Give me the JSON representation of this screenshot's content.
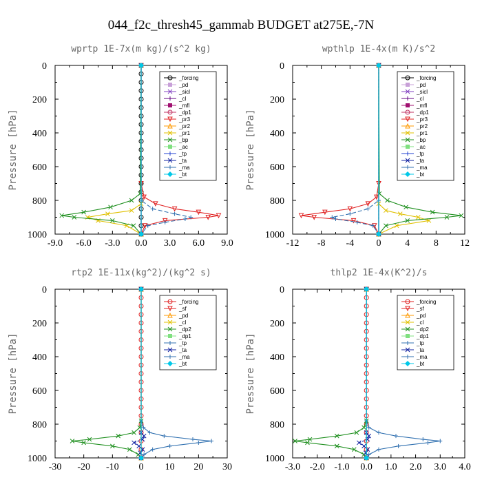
{
  "figure_title": "044_f2c_thresh45_gammab  BUDGET at275E,-7N",
  "chart_data": [
    {
      "type": "line",
      "title": "wprtp  1E-7x(m kg)/(s^2 kg)",
      "ylabel": "Pressure [hPa]",
      "xlim": [
        -9.0,
        9.0
      ],
      "ylim": [
        1000,
        0
      ],
      "xticks": [
        "-9.0",
        "-6.0",
        "-3.0",
        "0.0",
        "3.0",
        "6.0",
        "9.0"
      ],
      "yticks": [
        "0",
        "200",
        "400",
        "600",
        "800",
        "1000"
      ],
      "legend_position": "top-right",
      "series": [
        {
          "name": "_forcing",
          "color": "#000000",
          "marker": "o",
          "pressure": [
            0,
            50,
            100,
            150,
            200,
            250,
            300,
            350,
            400,
            450,
            500,
            550,
            600,
            650,
            700,
            750,
            800,
            850,
            900,
            950,
            1000
          ],
          "values": [
            0,
            0,
            0,
            0,
            0,
            0,
            0,
            0,
            0,
            0,
            0,
            0,
            0,
            0,
            0,
            0,
            0,
            0,
            0,
            0,
            0
          ]
        },
        {
          "name": "_pd",
          "color": "#c8a0d8",
          "marker": "s",
          "pressure": [
            0,
            1000
          ],
          "values": [
            0,
            0
          ]
        },
        {
          "name": "_sicl",
          "color": "#8040c0",
          "marker": "x",
          "pressure": [
            0,
            1000
          ],
          "values": [
            0,
            0
          ]
        },
        {
          "name": "_cl",
          "color": "#600080",
          "marker": "+",
          "pressure": [
            0,
            1000
          ],
          "values": [
            0,
            0
          ]
        },
        {
          "name": "_mfl",
          "color": "#a01070",
          "marker": "s",
          "pressure": [
            0,
            1000
          ],
          "values": [
            0,
            0
          ]
        },
        {
          "name": "_dp1",
          "color": "#c03060",
          "marker": "o",
          "pressure": [
            0,
            1000
          ],
          "values": [
            0,
            0
          ]
        },
        {
          "name": "_pr3",
          "color": "#e02020",
          "marker": "v",
          "pressure": [
            0,
            700,
            780,
            820,
            850,
            870,
            890,
            900,
            920,
            950,
            1000
          ],
          "values": [
            0,
            0,
            0.3,
            1.5,
            3.5,
            6.0,
            8.1,
            7.0,
            2.5,
            0.4,
            0
          ]
        },
        {
          "name": "_pr2",
          "color": "#ff9900",
          "marker": "^",
          "pressure": [
            0,
            1000
          ],
          "values": [
            0,
            0
          ]
        },
        {
          "name": "_pr1",
          "color": "#e0c000",
          "marker": "x",
          "pressure": [
            0,
            820,
            860,
            880,
            900,
            920,
            950,
            1000
          ],
          "values": [
            0,
            0,
            -1.0,
            -3.5,
            -5.6,
            -4.5,
            -1.5,
            0
          ]
        },
        {
          "name": "_bp",
          "color": "#209020",
          "marker": "x",
          "pressure": [
            0,
            760,
            800,
            840,
            870,
            890,
            900,
            920,
            950,
            1000
          ],
          "values": [
            0,
            -0.1,
            -1.0,
            -3.2,
            -6.0,
            -8.3,
            -7.0,
            -3.0,
            -0.8,
            0
          ]
        },
        {
          "name": "_ac",
          "color": "#80e080",
          "marker": "s",
          "pressure": [
            0,
            1000
          ],
          "values": [
            0,
            0
          ]
        },
        {
          "name": "_tp",
          "color": "#2040d0",
          "marker": "+",
          "pressure": [
            0,
            1000
          ],
          "values": [
            0,
            0
          ]
        },
        {
          "name": "_ta",
          "color": "#1020a0",
          "marker": "x",
          "pressure": [
            0,
            1000
          ],
          "values": [
            0,
            0
          ]
        },
        {
          "name": "_ma",
          "color": "#3070b0",
          "marker": "+",
          "pressure": [
            0,
            800,
            850,
            880,
            900,
            910,
            930,
            950,
            1000
          ],
          "values": [
            0,
            0,
            1.2,
            3.5,
            5.2,
            4.6,
            2.5,
            0.7,
            0
          ]
        },
        {
          "name": "_bt",
          "color": "#00c8e8",
          "marker": "D",
          "pressure": [
            0,
            1000
          ],
          "values": [
            0,
            0
          ]
        }
      ]
    },
    {
      "type": "line",
      "title": "wpthlp  1E-4x(m K)/s^2",
      "ylabel": "Pressure [hPa]",
      "xlim": [
        -12,
        12
      ],
      "ylim": [
        1000,
        0
      ],
      "xticks": [
        "-12",
        "-8",
        "-4",
        "0",
        "4",
        "8",
        "12"
      ],
      "yticks": [
        "0",
        "200",
        "400",
        "600",
        "800",
        "1000"
      ],
      "legend_position": "top-right",
      "series": [
        {
          "name": "_forcing",
          "color": "#000000",
          "marker": "o",
          "pressure": [
            0,
            1000
          ],
          "values": [
            0,
            0
          ]
        },
        {
          "name": "_pd",
          "color": "#c8a0d8",
          "marker": "s",
          "pressure": [
            0,
            1000
          ],
          "values": [
            0,
            0
          ]
        },
        {
          "name": "_sicl",
          "color": "#8040c0",
          "marker": "x",
          "pressure": [
            0,
            1000
          ],
          "values": [
            0,
            0
          ]
        },
        {
          "name": "_cl",
          "color": "#600080",
          "marker": "+",
          "pressure": [
            0,
            1000
          ],
          "values": [
            0,
            0
          ]
        },
        {
          "name": "_mfl",
          "color": "#a01070",
          "marker": "s",
          "pressure": [
            0,
            1000
          ],
          "values": [
            0,
            0
          ]
        },
        {
          "name": "_dp1",
          "color": "#c03060",
          "marker": "o",
          "pressure": [
            0,
            1000
          ],
          "values": [
            0,
            0
          ]
        },
        {
          "name": "_pr3",
          "color": "#e02020",
          "marker": "v",
          "pressure": [
            0,
            700,
            780,
            820,
            850,
            870,
            890,
            900,
            920,
            950,
            1000
          ],
          "values": [
            0,
            0,
            -0.3,
            -1.5,
            -4.0,
            -7.5,
            -10.8,
            -9.0,
            -3.5,
            -0.6,
            0
          ]
        },
        {
          "name": "_pr2",
          "color": "#ff9900",
          "marker": "^",
          "pressure": [
            0,
            1000
          ],
          "values": [
            0,
            0
          ]
        },
        {
          "name": "_pr1",
          "color": "#e0c000",
          "marker": "x",
          "pressure": [
            0,
            820,
            860,
            880,
            900,
            920,
            950,
            1000
          ],
          "values": [
            0,
            0,
            1.0,
            3.0,
            5.5,
            7.0,
            2.5,
            0
          ]
        },
        {
          "name": "_bp",
          "color": "#209020",
          "marker": "x",
          "pressure": [
            0,
            760,
            800,
            840,
            870,
            890,
            900,
            920,
            950,
            1000
          ],
          "values": [
            0,
            0.1,
            1.2,
            3.8,
            7.5,
            11.5,
            9.5,
            4.0,
            1.0,
            0
          ]
        },
        {
          "name": "_ac",
          "color": "#80e080",
          "marker": "s",
          "pressure": [
            0,
            1000
          ],
          "values": [
            0,
            0
          ]
        },
        {
          "name": "_tp",
          "color": "#2040d0",
          "marker": "+",
          "pressure": [
            0,
            1000
          ],
          "values": [
            0,
            0
          ]
        },
        {
          "name": "_ta",
          "color": "#1020a0",
          "marker": "x",
          "pressure": [
            0,
            1000
          ],
          "values": [
            0,
            0
          ]
        },
        {
          "name": "_ma",
          "color": "#3070b0",
          "marker": "+",
          "pressure": [
            0,
            800,
            850,
            880,
            900,
            910,
            930,
            950,
            1000
          ],
          "values": [
            0,
            0,
            -1.5,
            -4.0,
            -6.5,
            -6.0,
            -3.0,
            -0.8,
            0
          ]
        },
        {
          "name": "_bt",
          "color": "#00c8e8",
          "marker": "D",
          "pressure": [
            0,
            1000
          ],
          "values": [
            0,
            0
          ]
        }
      ]
    },
    {
      "type": "line",
      "title": "rtp2  1E-11x(kg^2)/(kg^2 s)",
      "ylabel": "Pressure [hPa]",
      "xlim": [
        -30,
        30
      ],
      "ylim": [
        1000,
        0
      ],
      "xticks": [
        "-30",
        "-20",
        "-10",
        "0",
        "10",
        "20",
        "30"
      ],
      "yticks": [
        "0",
        "200",
        "400",
        "600",
        "800",
        "1000"
      ],
      "legend_position": "top-right",
      "series": [
        {
          "name": "_forcing",
          "color": "#e02020",
          "marker": "o",
          "pressure": [
            0,
            50,
            100,
            150,
            200,
            250,
            300,
            350,
            400,
            450,
            500,
            550,
            600,
            650,
            700,
            750,
            800,
            850,
            900,
            950,
            1000
          ],
          "values": [
            0,
            0,
            0,
            0,
            0,
            0,
            0,
            0,
            0,
            0,
            0,
            0,
            0,
            0,
            0,
            0,
            0,
            0,
            0,
            0,
            0
          ]
        },
        {
          "name": "_sf",
          "color": "#e02020",
          "marker": "v",
          "pressure": [
            0,
            1000
          ],
          "values": [
            0,
            0
          ]
        },
        {
          "name": "_pd",
          "color": "#ff9900",
          "marker": "^",
          "pressure": [
            0,
            1000
          ],
          "values": [
            0,
            0
          ]
        },
        {
          "name": "_cl",
          "color": "#e0c000",
          "marker": "x",
          "pressure": [
            0,
            1000
          ],
          "values": [
            0,
            0
          ]
        },
        {
          "name": "_dp2",
          "color": "#209020",
          "marker": "x",
          "pressure": [
            0,
            780,
            820,
            850,
            870,
            890,
            900,
            910,
            930,
            950,
            980,
            1000
          ],
          "values": [
            0,
            0,
            -0.5,
            -2.5,
            -8.0,
            -18.0,
            -24.0,
            -20.0,
            -10.0,
            -4.0,
            -1.0,
            0
          ]
        },
        {
          "name": "_dp1",
          "color": "#80e080",
          "marker": "s",
          "pressure": [
            0,
            1000
          ],
          "values": [
            0,
            0
          ]
        },
        {
          "name": "_tp",
          "color": "#3070b0",
          "marker": "+",
          "pressure": [
            0,
            780,
            820,
            850,
            870,
            890,
            900,
            910,
            930,
            950,
            980,
            1000
          ],
          "values": [
            0,
            0,
            0.8,
            3.0,
            8.0,
            18.0,
            24.5,
            20.0,
            10.0,
            4.0,
            1.0,
            0
          ]
        },
        {
          "name": "_ta",
          "color": "#1020a0",
          "marker": "x",
          "pressure": [
            0,
            850,
            870,
            890,
            910,
            930,
            950,
            970,
            1000
          ],
          "values": [
            0,
            0,
            1.0,
            0.5,
            -2.5,
            -0.8,
            0.5,
            -0.3,
            0
          ]
        },
        {
          "name": "_ma",
          "color": "#3070b0",
          "marker": "+",
          "pressure": [
            0,
            1000
          ],
          "values": [
            0,
            0
          ]
        },
        {
          "name": "_bt",
          "color": "#00c8e8",
          "marker": "D",
          "pressure": [
            0,
            1000
          ],
          "values": [
            0,
            0
          ]
        }
      ]
    },
    {
      "type": "line",
      "title": "thlp2  1E-4x(K^2)/s",
      "ylabel": "Pressure [hPa]",
      "xlim": [
        -3.0,
        4.0
      ],
      "ylim": [
        1000,
        0
      ],
      "xticks": [
        "-3.0",
        "-2.0",
        "-1.0",
        "0.0",
        "1.0",
        "2.0",
        "3.0",
        "4.0"
      ],
      "yticks": [
        "0",
        "200",
        "400",
        "600",
        "800",
        "1000"
      ],
      "legend_position": "top-right",
      "series": [
        {
          "name": "_forcing",
          "color": "#e02020",
          "marker": "o",
          "pressure": [
            0,
            50,
            100,
            150,
            200,
            250,
            300,
            350,
            400,
            450,
            500,
            550,
            600,
            650,
            700,
            750,
            800,
            850,
            900,
            950,
            1000
          ],
          "values": [
            0,
            0,
            0,
            0,
            0,
            0,
            0,
            0,
            0,
            0,
            0,
            0,
            0,
            0,
            0,
            0,
            0,
            0,
            0,
            0,
            0
          ]
        },
        {
          "name": "_sf",
          "color": "#e02020",
          "marker": "v",
          "pressure": [
            0,
            1000
          ],
          "values": [
            0,
            0
          ]
        },
        {
          "name": "_pd",
          "color": "#ff9900",
          "marker": "^",
          "pressure": [
            0,
            1000
          ],
          "values": [
            0,
            0
          ]
        },
        {
          "name": "_cl",
          "color": "#e0c000",
          "marker": "x",
          "pressure": [
            0,
            1000
          ],
          "values": [
            0,
            0
          ]
        },
        {
          "name": "_dp2",
          "color": "#209020",
          "marker": "x",
          "pressure": [
            0,
            780,
            820,
            850,
            870,
            890,
            900,
            910,
            930,
            950,
            980,
            1000
          ],
          "values": [
            0,
            0,
            -0.1,
            -0.4,
            -1.2,
            -2.3,
            -2.9,
            -2.4,
            -1.2,
            -0.5,
            -0.1,
            0
          ]
        },
        {
          "name": "_dp1",
          "color": "#80e080",
          "marker": "s",
          "pressure": [
            0,
            1000
          ],
          "values": [
            0,
            0
          ]
        },
        {
          "name": "_tp",
          "color": "#3070b0",
          "marker": "+",
          "pressure": [
            0,
            780,
            820,
            850,
            870,
            890,
            900,
            910,
            930,
            950,
            980,
            1000
          ],
          "values": [
            0,
            0,
            0.1,
            0.5,
            1.2,
            2.3,
            3.0,
            2.5,
            1.3,
            0.5,
            0.1,
            0
          ]
        },
        {
          "name": "_ta",
          "color": "#1020a0",
          "marker": "x",
          "pressure": [
            0,
            850,
            870,
            890,
            910,
            930,
            950,
            970,
            1000
          ],
          "values": [
            0,
            0,
            0.1,
            0.05,
            -0.3,
            -0.1,
            0.05,
            -0.03,
            0
          ]
        },
        {
          "name": "_ma",
          "color": "#3070b0",
          "marker": "+",
          "pressure": [
            0,
            1000
          ],
          "values": [
            0,
            0
          ]
        },
        {
          "name": "_bt",
          "color": "#00c8e8",
          "marker": "D",
          "pressure": [
            0,
            1000
          ],
          "values": [
            0,
            0
          ]
        }
      ]
    }
  ]
}
